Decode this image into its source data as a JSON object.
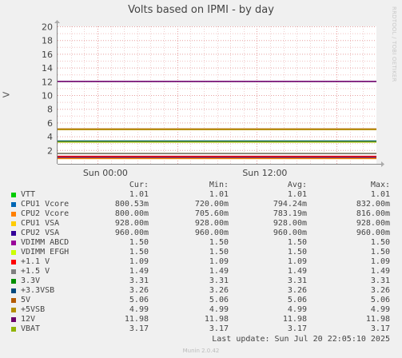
{
  "header": {
    "title": "Volts based on IPMI - by day",
    "side_text": "RRDTOOL / TOBI OETIKER"
  },
  "chart_data": {
    "type": "line",
    "title": "Volts based on IPMI - by day",
    "ylabel": "V",
    "ylim": [
      0,
      20
    ],
    "yticks": [
      2,
      4,
      6,
      8,
      10,
      12,
      14,
      16,
      18,
      20
    ],
    "xticks": [
      "Sun 00:00",
      "Sun 12:00"
    ],
    "grid": true,
    "columns": [
      "Cur:",
      "Min:",
      "Avg:",
      "Max:"
    ],
    "series": [
      {
        "name": "VTT",
        "color": "#00cc00",
        "cur": "1.01",
        "min": "1.01",
        "avg": "1.01",
        "max": "1.01",
        "level": 1.01
      },
      {
        "name": "CPU1 Vcore",
        "color": "#0066b3",
        "cur": "800.53m",
        "min": "720.00m",
        "avg": "794.24m",
        "max": "832.00m",
        "level": 0.794
      },
      {
        "name": "CPU2 Vcore",
        "color": "#ff8000",
        "cur": "800.00m",
        "min": "705.60m",
        "avg": "783.19m",
        "max": "816.00m",
        "level": 0.783
      },
      {
        "name": "CPU1 VSA",
        "color": "#ffcc00",
        "cur": "928.00m",
        "min": "928.00m",
        "avg": "928.00m",
        "max": "928.00m",
        "level": 0.928
      },
      {
        "name": "CPU2 VSA",
        "color": "#330099",
        "cur": "960.00m",
        "min": "960.00m",
        "avg": "960.00m",
        "max": "960.00m",
        "level": 0.96
      },
      {
        "name": "VDIMM ABCD",
        "color": "#990099",
        "cur": "1.50",
        "min": "1.50",
        "avg": "1.50",
        "max": "1.50",
        "level": 1.5
      },
      {
        "name": "VDIMM EFGH",
        "color": "#ccff00",
        "cur": "1.50",
        "min": "1.50",
        "avg": "1.50",
        "max": "1.50",
        "level": 1.5
      },
      {
        "name": "+1.1 V",
        "color": "#ff0000",
        "cur": "1.09",
        "min": "1.09",
        "avg": "1.09",
        "max": "1.09",
        "level": 1.09
      },
      {
        "name": "+1.5 V",
        "color": "#808080",
        "cur": "1.49",
        "min": "1.49",
        "avg": "1.49",
        "max": "1.49",
        "level": 1.49
      },
      {
        "name": "3.3V",
        "color": "#008f00",
        "cur": "3.31",
        "min": "3.31",
        "avg": "3.31",
        "max": "3.31",
        "level": 3.31
      },
      {
        "name": "+3.3VSB",
        "color": "#00487d",
        "cur": "3.26",
        "min": "3.26",
        "avg": "3.26",
        "max": "3.26",
        "level": 3.26
      },
      {
        "name": "5V",
        "color": "#b35a00",
        "cur": "5.06",
        "min": "5.06",
        "avg": "5.06",
        "max": "5.06",
        "level": 5.06
      },
      {
        "name": "+5VSB",
        "color": "#b38f00",
        "cur": "4.99",
        "min": "4.99",
        "avg": "4.99",
        "max": "4.99",
        "level": 4.99
      },
      {
        "name": "12V",
        "color": "#6b006b",
        "cur": "11.98",
        "min": "11.98",
        "avg": "11.98",
        "max": "11.98",
        "level": 11.98
      },
      {
        "name": "VBAT",
        "color": "#8fb300",
        "cur": "3.17",
        "min": "3.17",
        "avg": "3.17",
        "max": "3.17",
        "level": 3.17
      }
    ]
  },
  "footer": {
    "last_update": "Last update: Sun Jul 20 22:05:10 2025",
    "version": "Munin 2.0.42"
  }
}
